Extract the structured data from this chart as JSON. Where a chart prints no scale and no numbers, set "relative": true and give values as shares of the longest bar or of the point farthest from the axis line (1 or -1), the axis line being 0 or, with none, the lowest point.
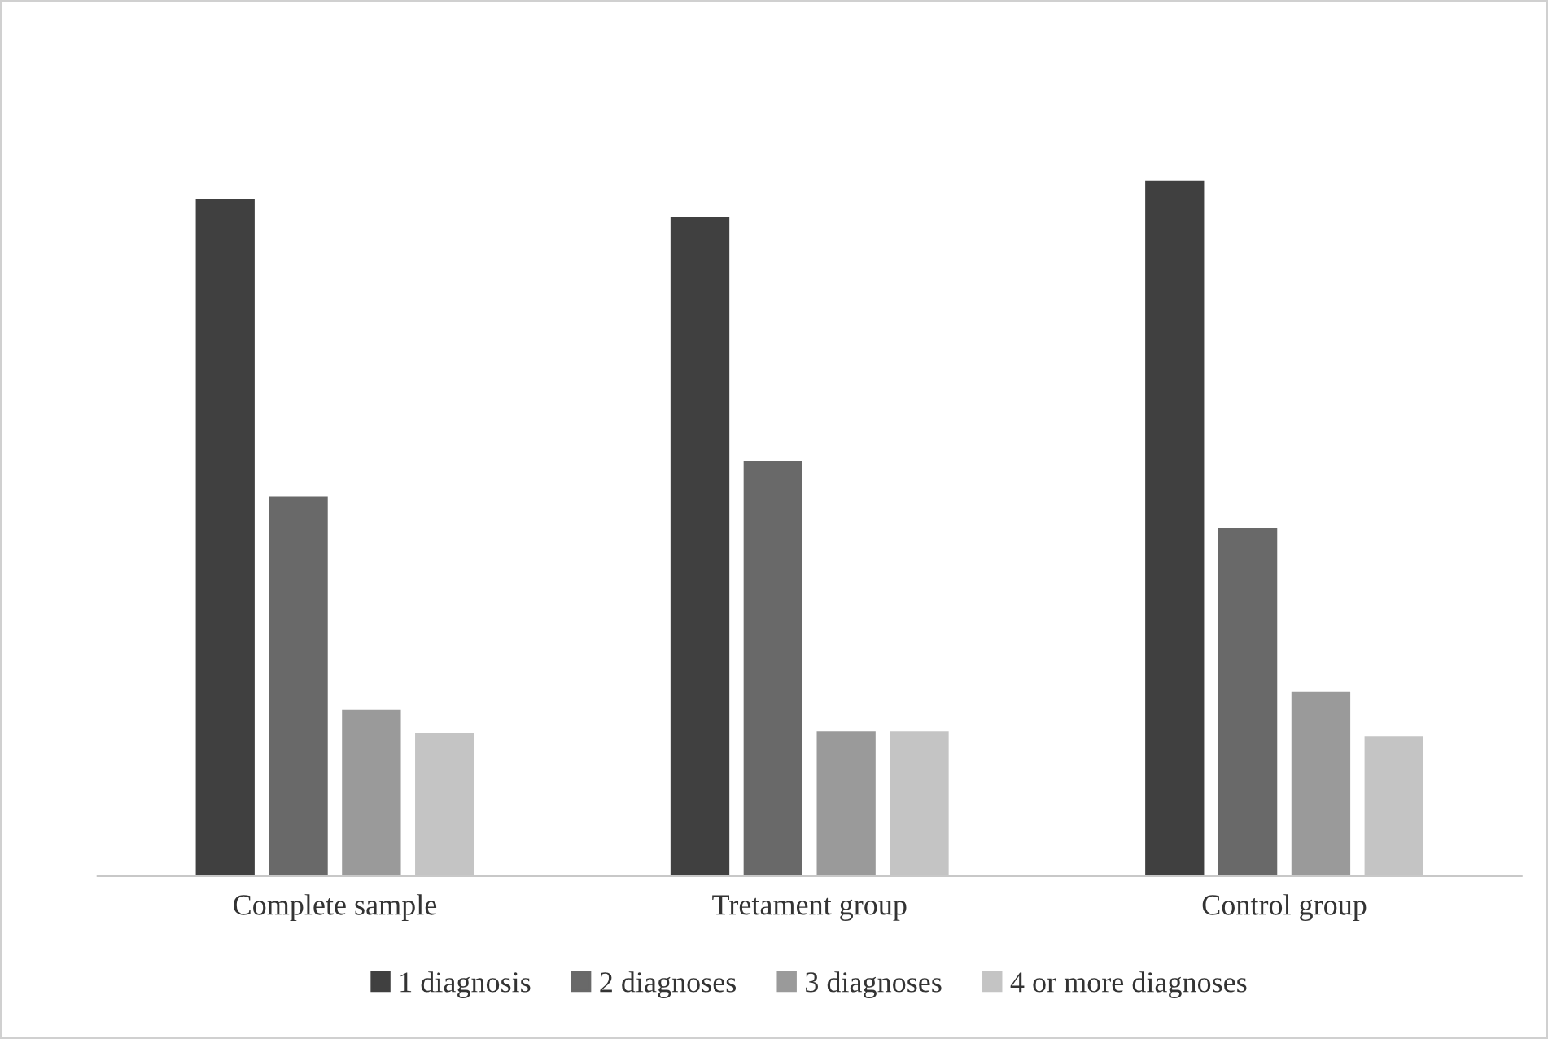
{
  "chart_data": {
    "type": "bar",
    "relative": true,
    "categories": [
      "Complete sample",
      "Tretament group",
      "Control group"
    ],
    "series": [
      {
        "name": "1 diagnosis",
        "color": "#404040",
        "values": [
          0.974,
          0.948,
          1.0
        ]
      },
      {
        "name": "2 diagnoses",
        "color": "#696969",
        "values": [
          0.546,
          0.597,
          0.501
        ]
      },
      {
        "name": "3 diagnoses",
        "color": "#9a9a9a",
        "values": [
          0.239,
          0.208,
          0.265
        ]
      },
      {
        "name": "4 or more diagnoses",
        "color": "#c4c4c4",
        "values": [
          0.206,
          0.208,
          0.201
        ]
      }
    ],
    "legend": "bottom",
    "grid": false
  }
}
